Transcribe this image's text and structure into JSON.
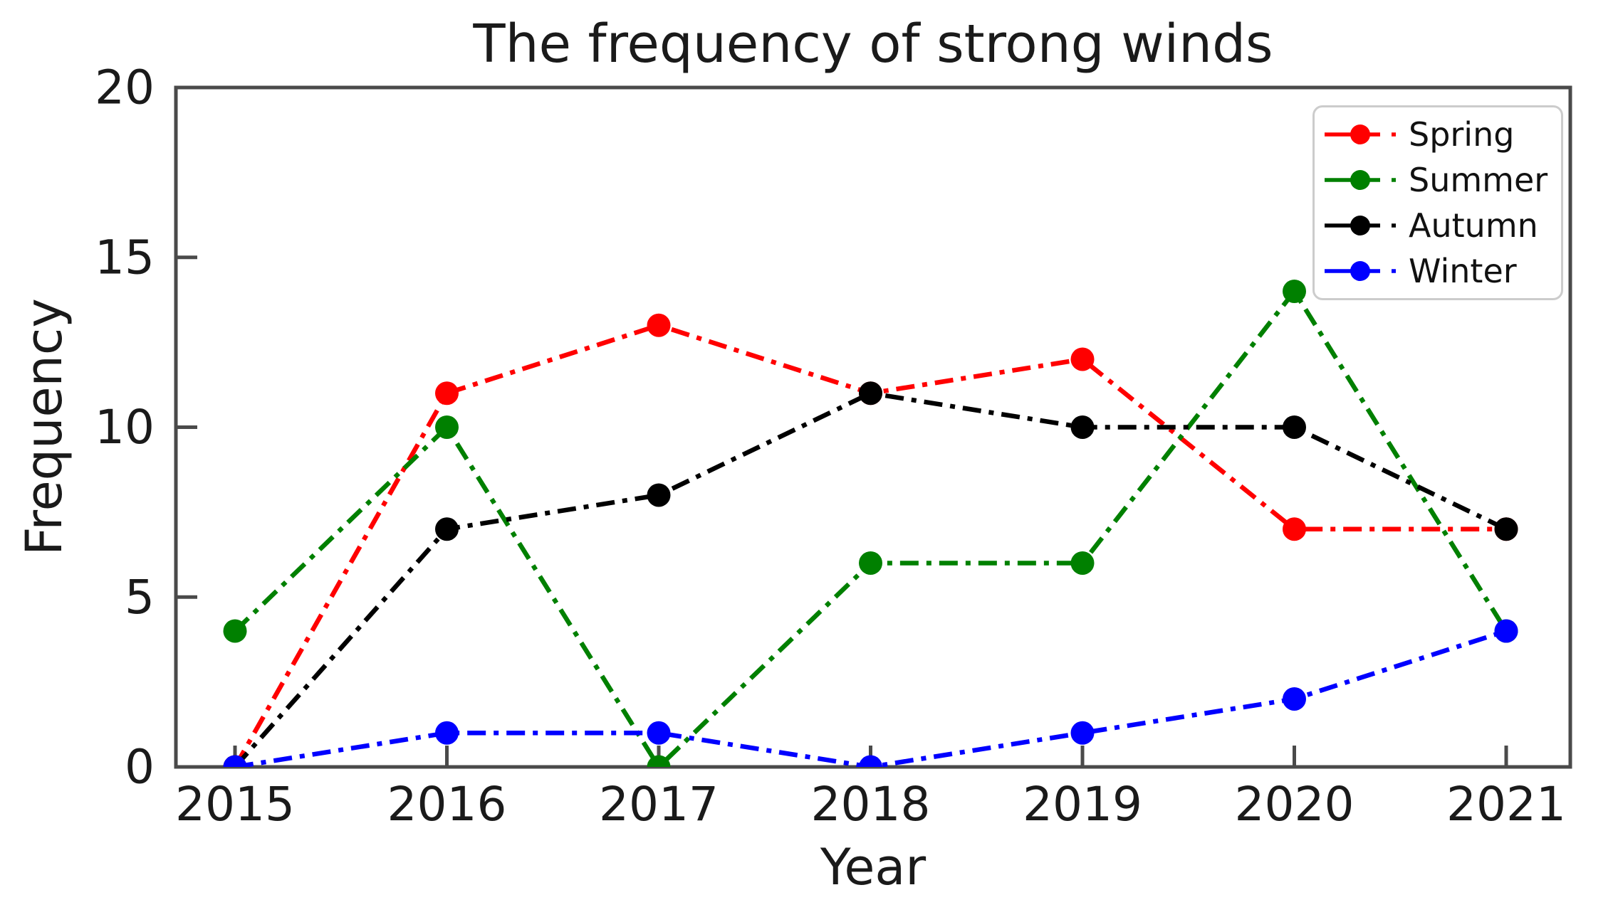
{
  "chart_data": {
    "type": "line",
    "title": "The frequency of strong winds",
    "xlabel": "Year",
    "ylabel": "Frequency",
    "categories": [
      "2015",
      "2016",
      "2017",
      "2018",
      "2019",
      "2020",
      "2021"
    ],
    "series": [
      {
        "name": "Spring",
        "color": "#ff0000",
        "values": [
          0,
          11,
          13,
          11,
          12,
          7,
          7
        ]
      },
      {
        "name": "Summer",
        "color": "#008000",
        "values": [
          4,
          10,
          0,
          6,
          6,
          14,
          4
        ]
      },
      {
        "name": "Autumn",
        "color": "#000000",
        "values": [
          0,
          7,
          8,
          11,
          10,
          10,
          7
        ]
      },
      {
        "name": "Winter",
        "color": "#0000ff",
        "values": [
          0,
          1,
          1,
          0,
          1,
          2,
          4
        ]
      }
    ],
    "ylim": [
      0,
      20
    ],
    "yticks": [
      "0",
      "5",
      "10",
      "15",
      "20"
    ],
    "grid": false,
    "legend_position": "upper right",
    "line_style": "dash-dot",
    "marker": "circle"
  }
}
